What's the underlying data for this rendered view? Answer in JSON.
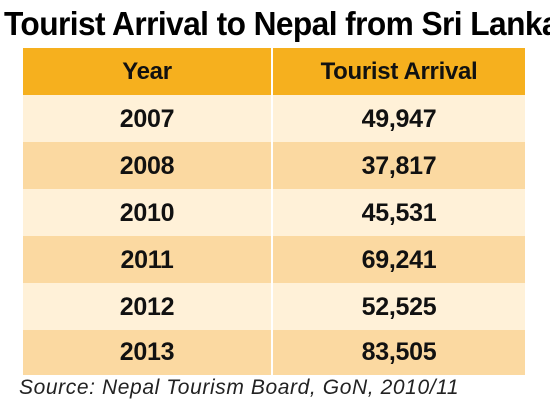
{
  "title": "Tourist Arrival to Nepal from Sri Lanka",
  "source": "Source: Nepal Tourism Board, GoN, 2010/11",
  "chart_data": {
    "type": "table",
    "title": "Tourist Arrival to Nepal from Sri Lanka",
    "columns": [
      "Year",
      "Tourist Arrival"
    ],
    "rows": [
      [
        "2007",
        "49,947"
      ],
      [
        "2008",
        "37,817"
      ],
      [
        "2010",
        "45,531"
      ],
      [
        "2011",
        "69,241"
      ],
      [
        "2012",
        "52,525"
      ],
      [
        "2013",
        "83,505"
      ]
    ],
    "colors": {
      "header": "#f6b01e",
      "row_light": "#fff1d8",
      "row_dark": "#fbd9a1"
    }
  }
}
